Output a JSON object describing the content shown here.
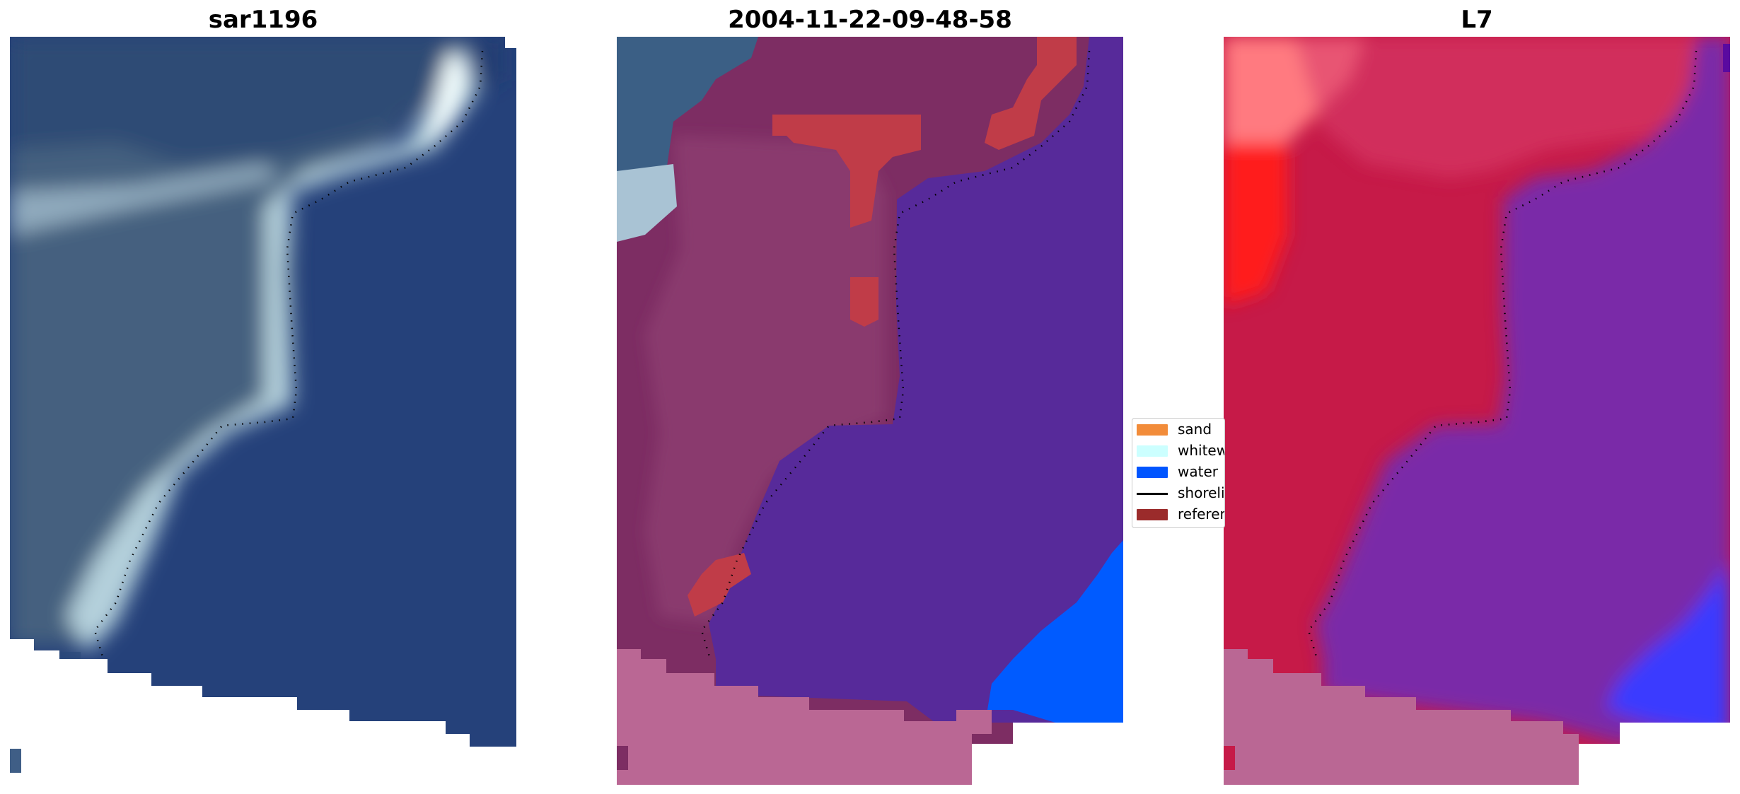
{
  "panels": [
    {
      "title": "sar1196"
    },
    {
      "title": "2004-11-22-09-48-58"
    },
    {
      "title": "L7"
    }
  ],
  "legend": {
    "items": [
      {
        "label": "sand",
        "color": "#f28c3a",
        "kind": "patch"
      },
      {
        "label": "whitewater",
        "color": "#ccffff",
        "kind": "patch"
      },
      {
        "label": "water",
        "color": "#0055ff",
        "kind": "patch"
      },
      {
        "label": "shoreline",
        "color": "#000000",
        "kind": "line"
      },
      {
        "label": "reference",
        "color": "#9b2b2b",
        "kind": "patch"
      }
    ]
  },
  "colors": {
    "deep_water": "#25417a",
    "shallow_water": "#3f5e86",
    "surf": "#b9d3dc",
    "land_overlay": "#7d2d63",
    "water_overlay": "#572a9a",
    "bright_water": "#005bff",
    "sand_overlay": "#ba6794",
    "reference_overlay": "#c03c48",
    "l7_land": "#c61a48",
    "l7_water": "#7a2aa8",
    "l7_bright": "#ff1a1a"
  }
}
